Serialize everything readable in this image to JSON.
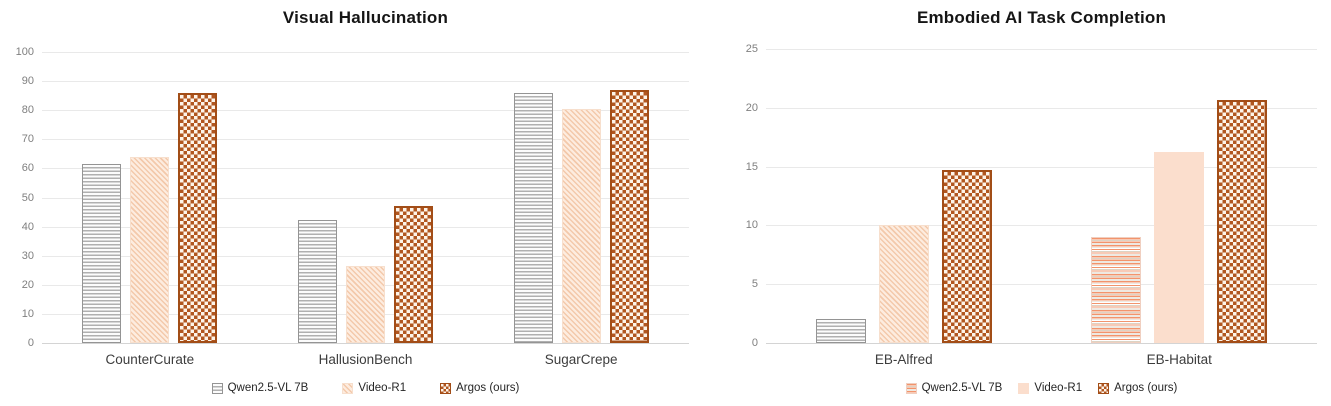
{
  "figure": {
    "colors": {
      "brown_accent": "#b1561f",
      "peach_solid": "#fbdecd",
      "peach_hatch": "#f3c9ab",
      "gray_stripe": "#b0b0b0",
      "orange_stripe": "#f2946c",
      "gridline": "#e9e9e9",
      "tick_label": "#7f7f7f"
    }
  },
  "chart_data": [
    {
      "type": "bar",
      "title": "Visual Hallucination",
      "categories": [
        "CounterCurate",
        "HallusionBench",
        "SugarCrepe"
      ],
      "series": [
        {
          "name": "Qwen2.5-VL 7B",
          "values": [
            61.5,
            42.4,
            85.8
          ],
          "patterns": [
            "gray-hlines",
            "gray-hlines",
            "gray-hlines"
          ]
        },
        {
          "name": "Video-R1",
          "values": [
            63.9,
            26.4,
            80.4
          ],
          "patterns": [
            "peach-diagonal",
            "peach-diagonal",
            "peach-diagonal"
          ]
        },
        {
          "name": "Argos (ours)",
          "values": [
            85.9,
            47.2,
            86.9
          ],
          "patterns": [
            "brown-checker",
            "brown-checker",
            "brown-checker"
          ]
        }
      ],
      "ylim": [
        0,
        100
      ],
      "ytick_step": 10,
      "grid": true,
      "legend_position": "bottom",
      "legend": [
        {
          "label": "Qwen2.5-VL 7B",
          "pattern": "gray-hlines"
        },
        {
          "label": "Video-R1",
          "pattern": "peach-diagonal"
        },
        {
          "label": "Argos (ours)",
          "pattern": "brown-checker"
        }
      ]
    },
    {
      "type": "bar",
      "title": "Embodied AI Task Completion",
      "categories": [
        "EB-Alfred",
        "EB-Habitat"
      ],
      "series": [
        {
          "name": "Qwen2.5-VL 7B",
          "values": [
            2.0,
            9.0
          ],
          "patterns": [
            "gray-hlines",
            "orange-hlines"
          ]
        },
        {
          "name": "Video-R1",
          "values": [
            10.0,
            16.2
          ],
          "patterns": [
            "peach-diagonal",
            "peach-solid"
          ]
        },
        {
          "name": "Argos (ours)",
          "values": [
            14.7,
            20.7
          ],
          "patterns": [
            "brown-checker",
            "brown-checker"
          ]
        }
      ],
      "ylim": [
        0,
        25
      ],
      "ytick_step": 5,
      "grid": true,
      "legend_position": "bottom",
      "legend": [
        {
          "label": "Qwen2.5-VL 7B",
          "pattern": "orange-hlines"
        },
        {
          "label": "Video-R1",
          "pattern": "peach-solid"
        },
        {
          "label": "Argos (ours)",
          "pattern": "brown-checker"
        }
      ]
    }
  ]
}
